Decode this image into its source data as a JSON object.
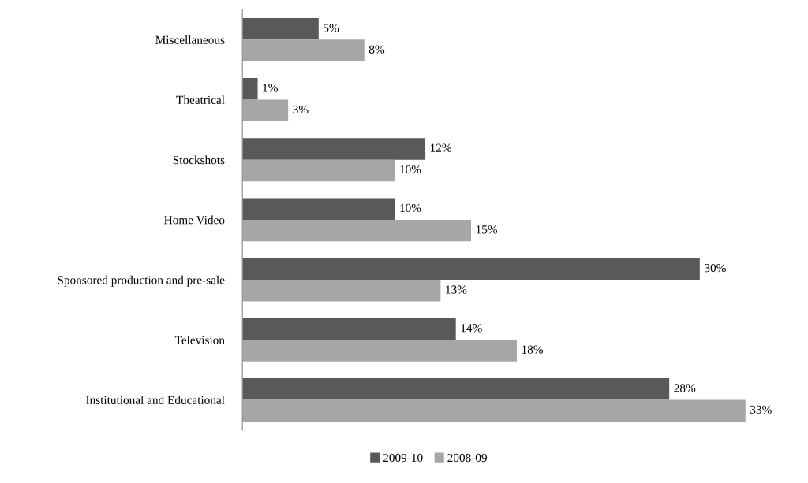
{
  "chart_data": {
    "type": "bar",
    "orientation": "horizontal",
    "categories": [
      "Miscellaneous",
      "Theatrical",
      "Stockshots",
      "Home Video",
      "Sponsored production and pre-sale",
      "Television",
      "Institutional and Educational"
    ],
    "series": [
      {
        "name": "2009-10",
        "color": "#595959",
        "values": [
          5,
          1,
          12,
          10,
          30,
          14,
          28
        ],
        "value_labels": [
          "5%",
          "1%",
          "12%",
          "10%",
          "30%",
          "14%",
          "28%"
        ]
      },
      {
        "name": "2008-09",
        "color": "#a6a6a6",
        "values": [
          8,
          3,
          10,
          15,
          13,
          18,
          33
        ],
        "value_labels": [
          "8%",
          "3%",
          "10%",
          "15%",
          "13%",
          "18%",
          "33%"
        ]
      }
    ],
    "tick_labels": "y",
    "grid": false,
    "legend": "bottom"
  }
}
